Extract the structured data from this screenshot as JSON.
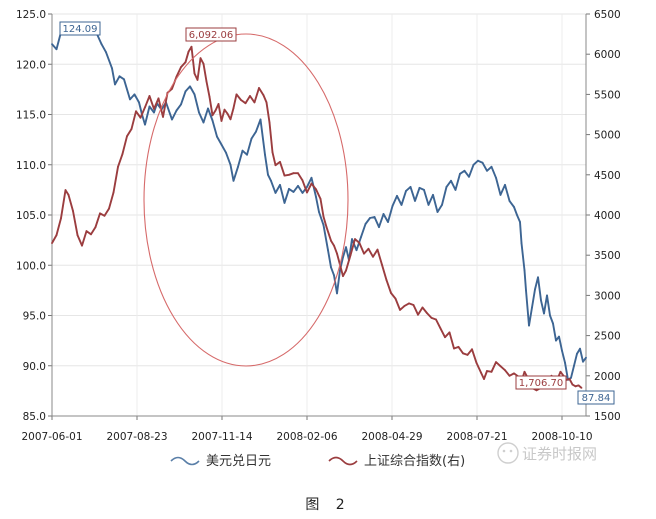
{
  "chart_data": {
    "type": "line",
    "x_ticks": [
      "2007-06-01",
      "2007-08-23",
      "2007-11-14",
      "2008-02-06",
      "2008-04-29",
      "2008-07-21",
      "2008-10-10"
    ],
    "left_axis": {
      "ylim": [
        85,
        125
      ],
      "ticks": [
        "125.0",
        "120.0",
        "115.0",
        "110.0",
        "105.0",
        "100.0",
        "95.0",
        "90.0",
        "85.0"
      ]
    },
    "right_axis": {
      "ylim": [
        1500,
        6500
      ],
      "ticks": [
        "6500",
        "6000",
        "5500",
        "5000",
        "4500",
        "4000",
        "3500",
        "3000",
        "2500",
        "2000",
        "1500"
      ]
    },
    "grid": true,
    "legend_position": "bottom",
    "series": [
      {
        "name": "美元兑日元",
        "axis": "left",
        "color": "#3d6593",
        "points": [
          [
            0,
            122.0
          ],
          [
            3,
            121.5
          ],
          [
            6,
            123.2
          ],
          [
            10,
            123.6
          ],
          [
            15,
            123.8
          ],
          [
            20,
            123.3
          ],
          [
            25,
            123.7
          ],
          [
            30,
            123.0
          ],
          [
            33,
            122.0
          ],
          [
            36,
            121.2
          ],
          [
            40,
            119.6
          ],
          [
            42,
            118.0
          ],
          [
            45,
            118.8
          ],
          [
            48,
            118.5
          ],
          [
            52,
            116.5
          ],
          [
            55,
            117.0
          ],
          [
            58,
            116.2
          ],
          [
            60,
            115.0
          ],
          [
            62,
            114.0
          ],
          [
            65,
            115.8
          ],
          [
            68,
            115.2
          ],
          [
            70,
            116.1
          ],
          [
            73,
            115.5
          ],
          [
            76,
            116.2
          ],
          [
            80,
            114.5
          ],
          [
            83,
            115.4
          ],
          [
            86,
            116.0
          ],
          [
            89,
            117.3
          ],
          [
            92,
            117.8
          ],
          [
            95,
            117.0
          ],
          [
            98,
            115.2
          ],
          [
            101,
            114.2
          ],
          [
            104,
            115.6
          ],
          [
            107,
            114.4
          ],
          [
            110,
            112.8
          ],
          [
            113,
            112.0
          ],
          [
            116,
            111.2
          ],
          [
            119,
            110.0
          ],
          [
            121,
            108.4
          ],
          [
            124,
            109.8
          ],
          [
            127,
            111.4
          ],
          [
            130,
            111.0
          ],
          [
            133,
            112.6
          ],
          [
            136,
            113.3
          ],
          [
            139,
            114.5
          ],
          [
            142,
            111.0
          ],
          [
            144,
            109.0
          ],
          [
            146,
            108.4
          ],
          [
            149,
            107.2
          ],
          [
            152,
            108.0
          ],
          [
            155,
            106.2
          ],
          [
            158,
            107.6
          ],
          [
            161,
            107.3
          ],
          [
            164,
            107.9
          ],
          [
            167,
            107.2
          ],
          [
            170,
            107.8
          ],
          [
            173,
            108.7
          ],
          [
            176,
            106.8
          ],
          [
            178,
            105.3
          ],
          [
            181,
            104.0
          ],
          [
            184,
            101.5
          ],
          [
            186,
            99.8
          ],
          [
            188,
            99.0
          ],
          [
            190,
            97.2
          ],
          [
            192,
            99.5
          ],
          [
            194,
            100.8
          ],
          [
            196,
            101.8
          ],
          [
            198,
            100.5
          ],
          [
            200,
            102.6
          ],
          [
            203,
            101.5
          ],
          [
            206,
            102.8
          ],
          [
            209,
            104.1
          ],
          [
            212,
            104.7
          ],
          [
            215,
            104.8
          ],
          [
            218,
            103.8
          ],
          [
            221,
            105.1
          ],
          [
            224,
            104.3
          ],
          [
            227,
            105.9
          ],
          [
            230,
            106.9
          ],
          [
            233,
            106.0
          ],
          [
            236,
            107.4
          ],
          [
            239,
            107.8
          ],
          [
            242,
            106.4
          ],
          [
            245,
            107.7
          ],
          [
            248,
            107.5
          ],
          [
            251,
            106.0
          ],
          [
            254,
            107.0
          ],
          [
            257,
            105.3
          ],
          [
            260,
            106.0
          ],
          [
            263,
            107.8
          ],
          [
            266,
            108.4
          ],
          [
            269,
            107.5
          ],
          [
            272,
            109.1
          ],
          [
            275,
            109.4
          ],
          [
            278,
            108.8
          ],
          [
            281,
            110.0
          ],
          [
            284,
            110.4
          ],
          [
            287,
            110.2
          ],
          [
            290,
            109.4
          ],
          [
            293,
            109.8
          ],
          [
            296,
            108.7
          ],
          [
            299,
            107.0
          ],
          [
            302,
            108.0
          ],
          [
            305,
            106.4
          ],
          [
            308,
            105.8
          ],
          [
            310,
            105.0
          ],
          [
            312,
            104.3
          ],
          [
            313,
            102.2
          ],
          [
            315,
            99.5
          ],
          [
            316,
            97.5
          ],
          [
            318,
            94.0
          ],
          [
            320,
            95.8
          ],
          [
            322,
            97.6
          ],
          [
            324,
            98.8
          ],
          [
            326,
            96.5
          ],
          [
            328,
            95.2
          ],
          [
            330,
            97.0
          ],
          [
            332,
            95.0
          ],
          [
            334,
            94.2
          ],
          [
            336,
            92.5
          ],
          [
            338,
            92.9
          ],
          [
            340,
            91.5
          ],
          [
            342,
            90.3
          ],
          [
            344,
            88.6
          ],
          [
            346,
            88.8
          ],
          [
            348,
            90.0
          ],
          [
            350,
            91.2
          ],
          [
            352,
            91.7
          ],
          [
            354,
            90.4
          ],
          [
            356,
            90.8
          ]
        ]
      },
      {
        "name": "上证综合指数(右)",
        "axis": "right",
        "color": "#9b3d3f",
        "points": [
          [
            0,
            3650
          ],
          [
            3,
            3750
          ],
          [
            6,
            3960
          ],
          [
            9,
            4310
          ],
          [
            11,
            4250
          ],
          [
            14,
            4050
          ],
          [
            17,
            3750
          ],
          [
            20,
            3620
          ],
          [
            23,
            3800
          ],
          [
            26,
            3760
          ],
          [
            29,
            3850
          ],
          [
            32,
            4020
          ],
          [
            35,
            3990
          ],
          [
            38,
            4080
          ],
          [
            41,
            4280
          ],
          [
            44,
            4600
          ],
          [
            47,
            4760
          ],
          [
            50,
            4980
          ],
          [
            53,
            5070
          ],
          [
            56,
            5290
          ],
          [
            59,
            5210
          ],
          [
            62,
            5340
          ],
          [
            65,
            5480
          ],
          [
            68,
            5320
          ],
          [
            71,
            5450
          ],
          [
            74,
            5220
          ],
          [
            77,
            5520
          ],
          [
            80,
            5570
          ],
          [
            83,
            5720
          ],
          [
            86,
            5840
          ],
          [
            89,
            5900
          ],
          [
            91,
            6030
          ],
          [
            93,
            6092
          ],
          [
            95,
            5760
          ],
          [
            97,
            5680
          ],
          [
            99,
            5950
          ],
          [
            101,
            5880
          ],
          [
            103,
            5660
          ],
          [
            105,
            5470
          ],
          [
            107,
            5240
          ],
          [
            109,
            5300
          ],
          [
            111,
            5380
          ],
          [
            113,
            5170
          ],
          [
            115,
            5310
          ],
          [
            117,
            5260
          ],
          [
            119,
            5190
          ],
          [
            121,
            5330
          ],
          [
            123,
            5500
          ],
          [
            126,
            5430
          ],
          [
            129,
            5390
          ],
          [
            132,
            5480
          ],
          [
            135,
            5400
          ],
          [
            138,
            5580
          ],
          [
            141,
            5490
          ],
          [
            143,
            5400
          ],
          [
            145,
            5150
          ],
          [
            147,
            4780
          ],
          [
            149,
            4620
          ],
          [
            152,
            4660
          ],
          [
            155,
            4490
          ],
          [
            158,
            4500
          ],
          [
            161,
            4520
          ],
          [
            164,
            4520
          ],
          [
            167,
            4430
          ],
          [
            170,
            4280
          ],
          [
            173,
            4390
          ],
          [
            176,
            4320
          ],
          [
            179,
            4200
          ],
          [
            181,
            3980
          ],
          [
            183,
            3850
          ],
          [
            186,
            3680
          ],
          [
            188,
            3620
          ],
          [
            190,
            3520
          ],
          [
            192,
            3380
          ],
          [
            194,
            3240
          ],
          [
            196,
            3310
          ],
          [
            199,
            3500
          ],
          [
            202,
            3700
          ],
          [
            205,
            3650
          ],
          [
            208,
            3520
          ],
          [
            211,
            3580
          ],
          [
            214,
            3480
          ],
          [
            217,
            3570
          ],
          [
            220,
            3380
          ],
          [
            223,
            3190
          ],
          [
            226,
            3030
          ],
          [
            229,
            2960
          ],
          [
            232,
            2820
          ],
          [
            235,
            2870
          ],
          [
            238,
            2900
          ],
          [
            241,
            2880
          ],
          [
            244,
            2760
          ],
          [
            247,
            2850
          ],
          [
            250,
            2780
          ],
          [
            253,
            2720
          ],
          [
            256,
            2700
          ],
          [
            259,
            2590
          ],
          [
            262,
            2480
          ],
          [
            265,
            2540
          ],
          [
            268,
            2340
          ],
          [
            271,
            2360
          ],
          [
            274,
            2280
          ],
          [
            277,
            2260
          ],
          [
            280,
            2330
          ],
          [
            283,
            2160
          ],
          [
            286,
            2040
          ],
          [
            288,
            1960
          ],
          [
            290,
            2060
          ],
          [
            293,
            2050
          ],
          [
            296,
            2170
          ],
          [
            299,
            2120
          ],
          [
            302,
            2070
          ],
          [
            305,
            2000
          ],
          [
            308,
            2030
          ],
          [
            311,
            1990
          ],
          [
            313,
            1930
          ],
          [
            315,
            2050
          ],
          [
            317,
            1980
          ],
          [
            319,
            1920
          ],
          [
            321,
            1840
          ],
          [
            323,
            1820
          ],
          [
            325,
            1840
          ],
          [
            327,
            1900
          ],
          [
            329,
            1870
          ],
          [
            331,
            1950
          ],
          [
            333,
            2000
          ],
          [
            335,
            1900
          ],
          [
            337,
            1960
          ],
          [
            339,
            2050
          ],
          [
            341,
            2000
          ],
          [
            343,
            1950
          ],
          [
            345,
            1960
          ],
          [
            347,
            1890
          ],
          [
            349,
            1870
          ],
          [
            351,
            1880
          ],
          [
            353,
            1850
          ]
        ]
      }
    ],
    "annotations": [
      {
        "label": "124.09",
        "series": 0
      },
      {
        "label": "6,092.06",
        "series": 1
      },
      {
        "label": "1,706.70",
        "series": 1
      },
      {
        "label": "87.84",
        "series": 0
      }
    ]
  },
  "legend": [
    {
      "label": "美元兑日元"
    },
    {
      "label": "上证综合指数(右)"
    }
  ],
  "watermark": "证券时报网",
  "caption": "图 2"
}
